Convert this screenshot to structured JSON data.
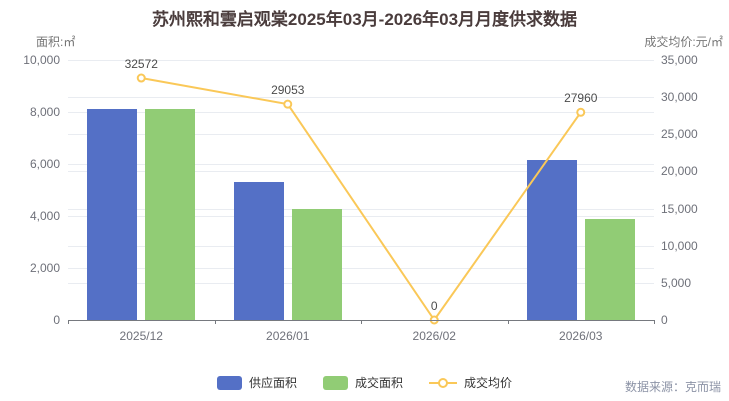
{
  "title": "苏州熙和雲启观棠2025年03月-2026年03月月度供求数据",
  "chart_data": {
    "type": "bar+line combo, dual y-axes",
    "categories": [
      "2025/12",
      "2026/01",
      "2026/02",
      "2026/03"
    ],
    "series": [
      {
        "name": "供应面积",
        "type": "bar",
        "axis": "left",
        "color": "#5470c6",
        "values": [
          8100,
          5300,
          0,
          6150
        ]
      },
      {
        "name": "成交面积",
        "type": "bar",
        "axis": "left",
        "color": "#91cc75",
        "values": [
          8100,
          4270,
          0,
          3900
        ]
      },
      {
        "name": "成交均价",
        "type": "line",
        "axis": "right",
        "color": "#fac858",
        "values": [
          32572,
          29053,
          0,
          27960
        ],
        "point_labels": [
          "32572",
          "29053",
          "0",
          "27960"
        ]
      }
    ],
    "axes": {
      "left": {
        "name": "面积:㎡",
        "min": 0,
        "max": 10000,
        "step": 2000
      },
      "right": {
        "name": "成交均价:元/㎡",
        "min": 0,
        "max": 35000,
        "step": 5000
      }
    },
    "grid": true,
    "legend_position": "bottom-center"
  },
  "legend": {
    "items": [
      {
        "label": "供应面积",
        "icon": "bar",
        "color": "#5470c6"
      },
      {
        "label": "成交面积",
        "icon": "bar",
        "color": "#91cc75"
      },
      {
        "label": "成交均价",
        "icon": "line",
        "color": "#fac858"
      }
    ]
  },
  "source": {
    "text": "数据来源：克而瑞"
  },
  "colors": {
    "supply_bar": "#5470c6",
    "deal_bar": "#91cc75",
    "price_line": "#fac858",
    "title_text": "#4a3c3c",
    "axis_text": "#6e7079",
    "axis_name_text": "#767676",
    "grid_line": "#e9ecf1",
    "axis_line": "#76797f",
    "point_label_text": "#4c4c4c",
    "source_text": "#8c93a6",
    "background": "#ffffff"
  }
}
